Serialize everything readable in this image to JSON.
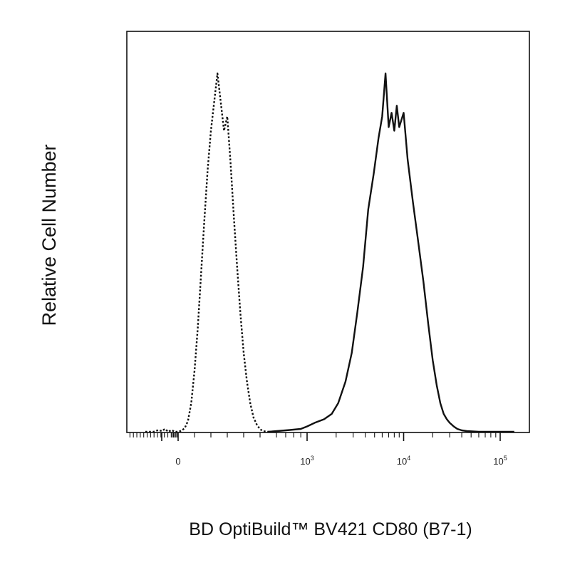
{
  "chart_data": {
    "type": "line",
    "title": "",
    "xlabel": "BD OptiBuild™ BV421 CD80 (B7-1)",
    "ylabel": "Relative Cell Number",
    "x_scale": "biexponential (logicle)",
    "x_ticks": [
      {
        "value": 0,
        "base": "0",
        "exp": ""
      },
      {
        "value": 1000,
        "base": "10",
        "exp": "3"
      },
      {
        "value": 10000,
        "base": "10",
        "exp": "4"
      },
      {
        "value": 100000,
        "base": "10",
        "exp": "5"
      }
    ],
    "y_range": [
      0,
      100
    ],
    "grid": false,
    "legend": "none",
    "series": [
      {
        "style": "dotted",
        "color": "#111111",
        "x": [
          -200,
          -150,
          -120,
          -100,
          -80,
          -60,
          -40,
          -20,
          0,
          20,
          40,
          60,
          80,
          100,
          120,
          140,
          160,
          180,
          200,
          220,
          240,
          260,
          280,
          300,
          320,
          340,
          360,
          380,
          400,
          420,
          440,
          460,
          480,
          500,
          520,
          540,
          560,
          580,
          600
        ],
        "y": [
          0,
          0,
          0.5,
          0.2,
          0.8,
          0,
          0.5,
          0,
          0,
          0.3,
          1,
          3,
          8,
          17,
          29,
          44,
          59,
          73,
          84,
          92,
          100,
          92,
          84,
          88,
          75,
          60,
          46,
          33,
          22,
          14,
          8,
          4,
          2,
          0.7,
          0.2,
          0,
          0,
          0,
          0
        ]
      },
      {
        "style": "solid",
        "color": "#111111",
        "x": [
          550,
          650,
          750,
          900,
          1000,
          1200,
          1500,
          1800,
          2100,
          2500,
          2900,
          3300,
          3800,
          4300,
          4900,
          5500,
          6000,
          6500,
          7000,
          7500,
          8000,
          8500,
          9000,
          10000,
          11000,
          12500,
          14000,
          16000,
          18000,
          20000,
          22000,
          24000,
          26000,
          28000,
          30000,
          33000,
          36000,
          40000,
          45000,
          52000,
          60000,
          80000,
          100000,
          140000
        ],
        "y": [
          0,
          0.3,
          0.5,
          0.8,
          1.5,
          2.5,
          3.5,
          5,
          8,
          14,
          22,
          33,
          46,
          62,
          72,
          82,
          88,
          100,
          85,
          89,
          84,
          91,
          85,
          89,
          76,
          64,
          54,
          42,
          30,
          20,
          13,
          8,
          5,
          3.5,
          2.5,
          1.5,
          0.8,
          0.4,
          0.2,
          0.1,
          0,
          0,
          0,
          0
        ]
      }
    ]
  }
}
